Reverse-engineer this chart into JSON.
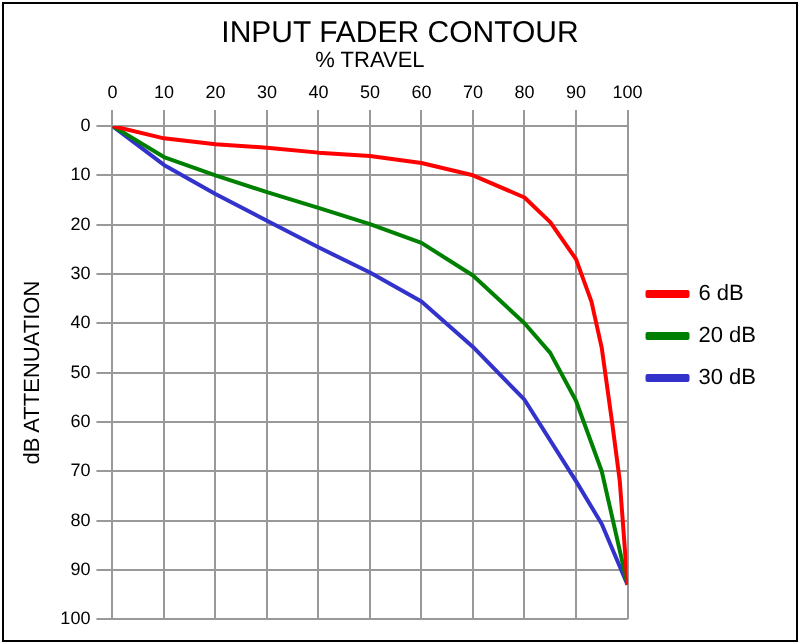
{
  "chart_data": {
    "type": "line",
    "title": "INPUT FADER CONTOUR",
    "xlabel": "% TRAVEL",
    "ylabel": "dB ATTENUATION",
    "x": [
      0,
      10,
      20,
      30,
      40,
      50,
      60,
      70,
      80,
      85,
      90,
      93,
      95,
      97,
      98.5,
      100
    ],
    "xlim": [
      0,
      100
    ],
    "xticks": [
      0,
      10,
      20,
      30,
      40,
      50,
      60,
      70,
      80,
      90,
      100
    ],
    "ylim": [
      100,
      0
    ],
    "yticks": [
      0,
      10,
      20,
      30,
      40,
      50,
      60,
      70,
      80,
      90,
      100
    ],
    "series": [
      {
        "name": "6 dB",
        "color": "#ff0000",
        "values": [
          0,
          2.5,
          3.7,
          4.4,
          5.4,
          6.1,
          7.5,
          10,
          14.5,
          19.5,
          27,
          35.6,
          45,
          60,
          72,
          93
        ]
      },
      {
        "name": "20 dB",
        "color": "#008000",
        "values": [
          0,
          6.3,
          10,
          13.4,
          16.6,
          19.9,
          23.7,
          30.3,
          40,
          46,
          55.7,
          null,
          70,
          null,
          null,
          93
        ]
      },
      {
        "name": "30 dB",
        "color": "#3333cc",
        "values": [
          0,
          7.9,
          13.8,
          19.2,
          24.6,
          29.7,
          35.6,
          44.8,
          55.5,
          null,
          72,
          null,
          80.7,
          null,
          null,
          93
        ]
      }
    ],
    "grid": true,
    "legend": "right",
    "marker": "none",
    "line_style": "solid"
  }
}
